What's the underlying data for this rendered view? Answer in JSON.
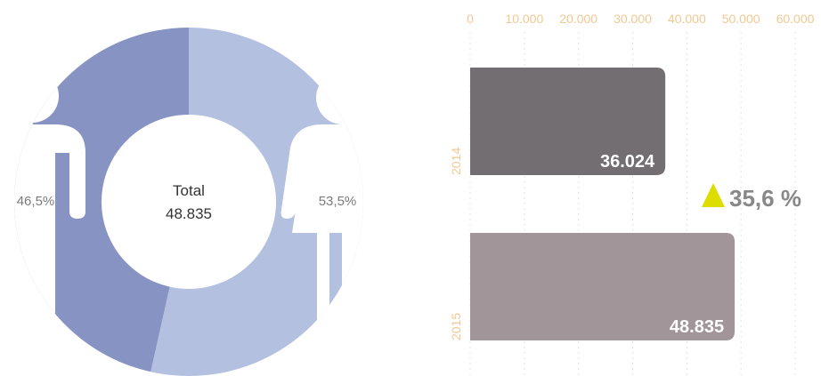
{
  "colors": {
    "donut_left": "#8793c2",
    "donut_right": "#b3c0e0",
    "bar_2014": "#736e71",
    "bar_2015": "#a29599",
    "axis_text": "#f2c892",
    "triangle": "#dddd00",
    "change_text": "#888888"
  },
  "chart_data": [
    {
      "type": "pie",
      "variant": "donut",
      "center_label": "Total",
      "center_value": "48.835",
      "slices": [
        {
          "value": 46.5,
          "label": "46,5%",
          "color": "#8793c2",
          "icon": "male-person-icon"
        },
        {
          "value": 53.5,
          "label": "53,5%",
          "color": "#b3c0e0",
          "icon": "female-person-icon"
        }
      ]
    },
    {
      "type": "bar",
      "orientation": "horizontal",
      "categories": [
        "2014",
        "2015"
      ],
      "values": [
        36024,
        48835
      ],
      "value_labels": [
        "36.024",
        "48.835"
      ],
      "colors": [
        "#736e71",
        "#a29599"
      ],
      "xlim": [
        0,
        60000
      ],
      "xticks": [
        0,
        10000,
        20000,
        30000,
        40000,
        50000,
        60000
      ],
      "xtick_labels": [
        "0",
        "10.000",
        "20.000",
        "30.000",
        "40.000",
        "50.000",
        "60.000"
      ],
      "xaxis_position": "top",
      "grid": "vertical dotted",
      "annotation": {
        "text": "35,6 %",
        "icon": "up-triangle-icon"
      }
    }
  ]
}
